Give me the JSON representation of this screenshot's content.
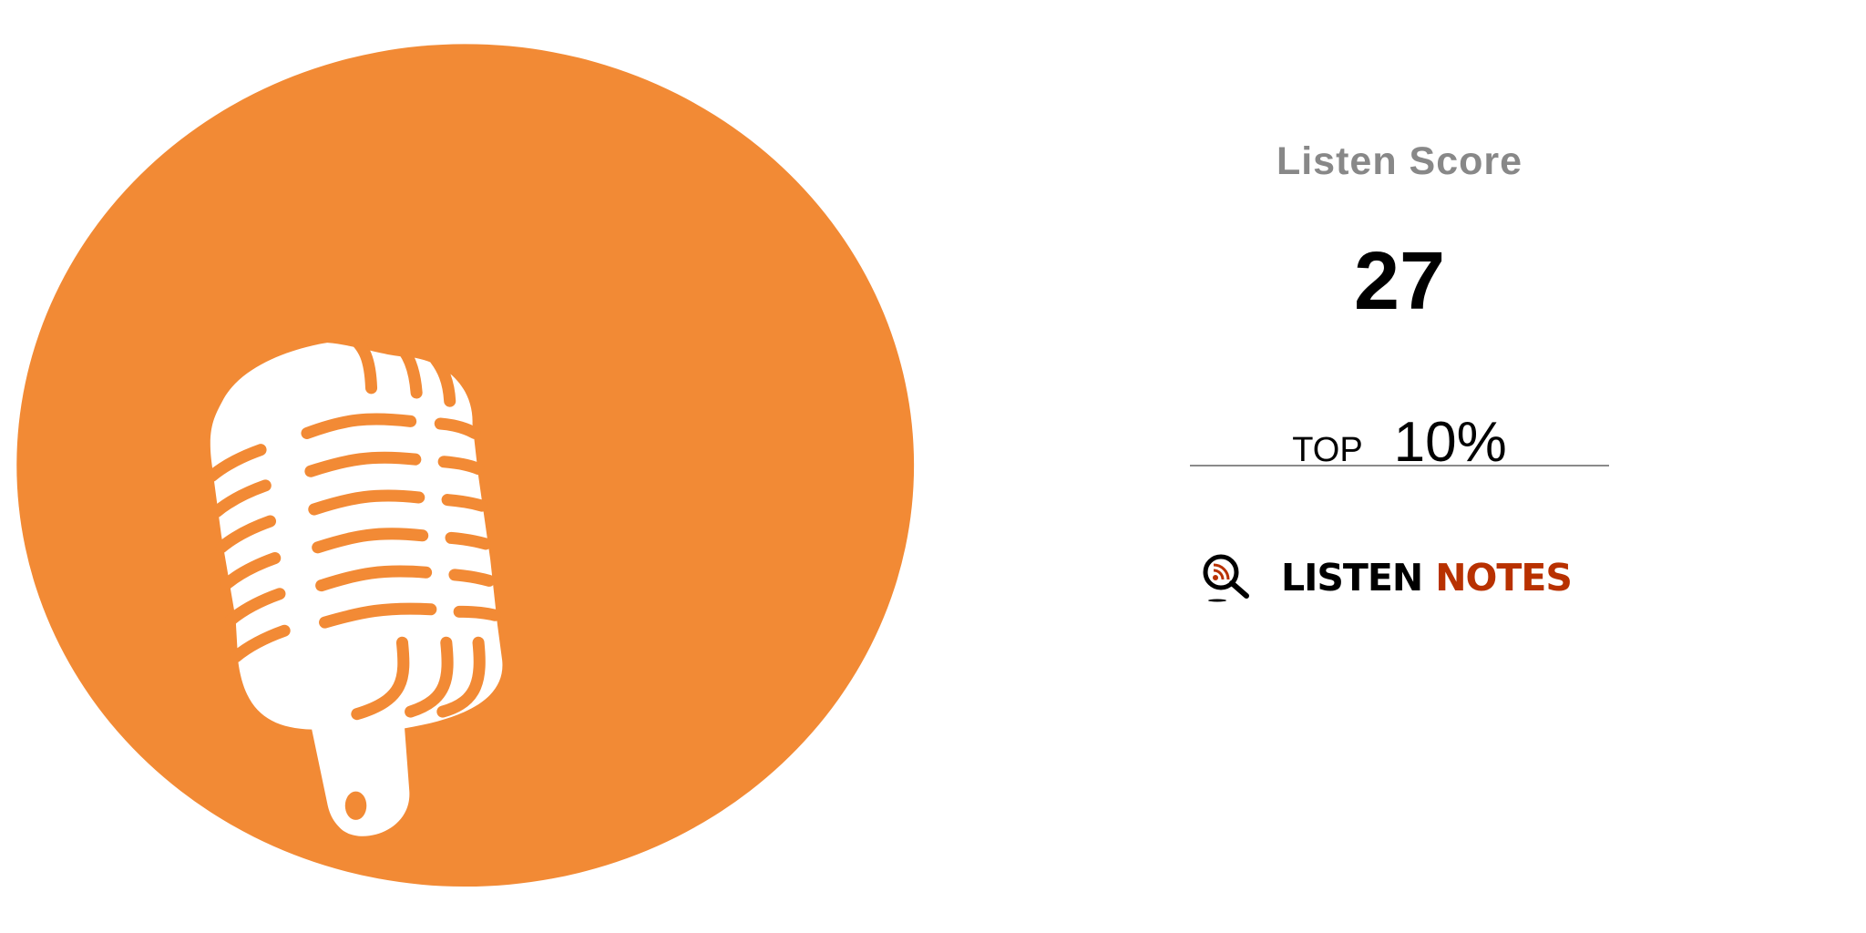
{
  "badge": {
    "title": "Listen Score",
    "score": "27",
    "rank_prefix": "TOP",
    "rank_value": "10%",
    "score_value": 27,
    "top_percent": 10
  },
  "brand": {
    "word1": "LISTEN",
    "word2": "NOTES",
    "icon": "magnifier-rss-icon"
  },
  "artwork": {
    "icon": "microphone-icon",
    "background_color": "#f28a35",
    "icon_color": "#ffffff"
  },
  "colors": {
    "title": "#888888",
    "brand_accent": "#b83100"
  }
}
